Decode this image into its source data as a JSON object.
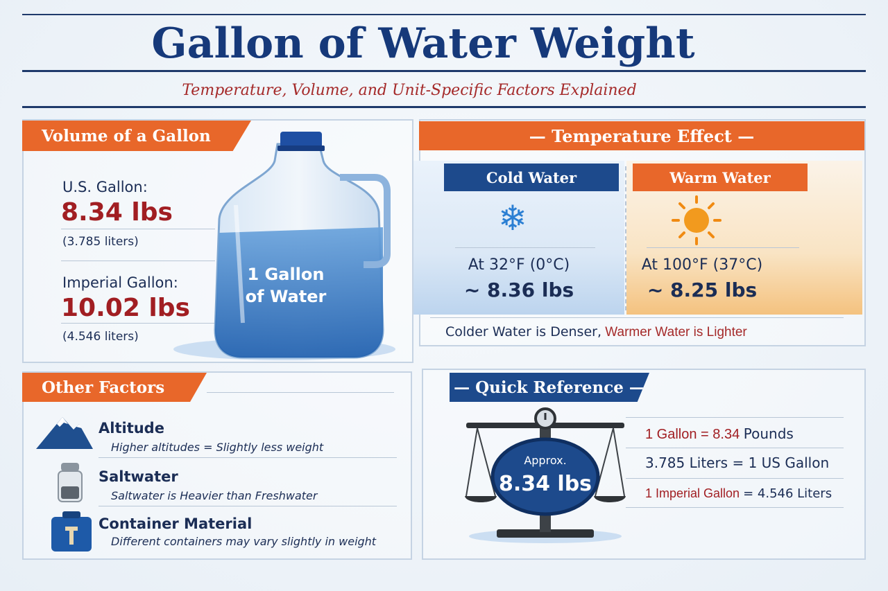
{
  "header": {
    "title": "Gallon of Water Weight",
    "subtitle": "Temperature, Volume, and Unit-Specific Factors Explained"
  },
  "volume": {
    "banner": "Volume of a Gallon",
    "us_label": "U.S. Gallon:",
    "us_weight": "8.34 lbs",
    "us_liters": "(3.785 liters)",
    "imperial_label": "Imperial Gallon:",
    "imperial_weight": "10.02 lbs",
    "imperial_liters": "(4.546 liters)",
    "jug_line1": "1 Gallon",
    "jug_line2": "of Water"
  },
  "temperature": {
    "banner": "— Temperature Effect —",
    "cold_title": "Cold Water",
    "cold_line1": "At 32°F (0°C)",
    "cold_line2": "~ 8.36 lbs",
    "warm_title": "Warm Water",
    "warm_line1": "At 100°F (37°C)",
    "warm_line2": "~ 8.25 lbs",
    "note_dark": "Colder Water is Denser,",
    "note_red": "Warmer Water is Lighter"
  },
  "factors": {
    "banner": "Other Factors",
    "items": [
      {
        "title": "Altitude",
        "desc": "Higher altitudes = Slightly less weight",
        "icon": "mountain-icon"
      },
      {
        "title": "Saltwater",
        "desc": "Saltwater is Heavier than Freshwater",
        "icon": "salt-shaker-icon"
      },
      {
        "title": "Container Material",
        "desc": "Different containers may vary slightly in weight",
        "icon": "container-icon"
      }
    ]
  },
  "reference": {
    "banner": "— Quick Reference —",
    "scale_line1": "Approx.",
    "scale_line2": "8.34 lbs",
    "row1_red": "1 Gallon = 8.34",
    "row1_dark": "Pounds",
    "row2": "3.785 Liters = 1 US Gallon",
    "row3_red": "1 Imperial Gallon",
    "row3_dark": "= 4.546 Liters"
  },
  "colors": {
    "accent_orange": "#e8672a",
    "navy": "#1d4a8c",
    "red": "#a11e22"
  }
}
